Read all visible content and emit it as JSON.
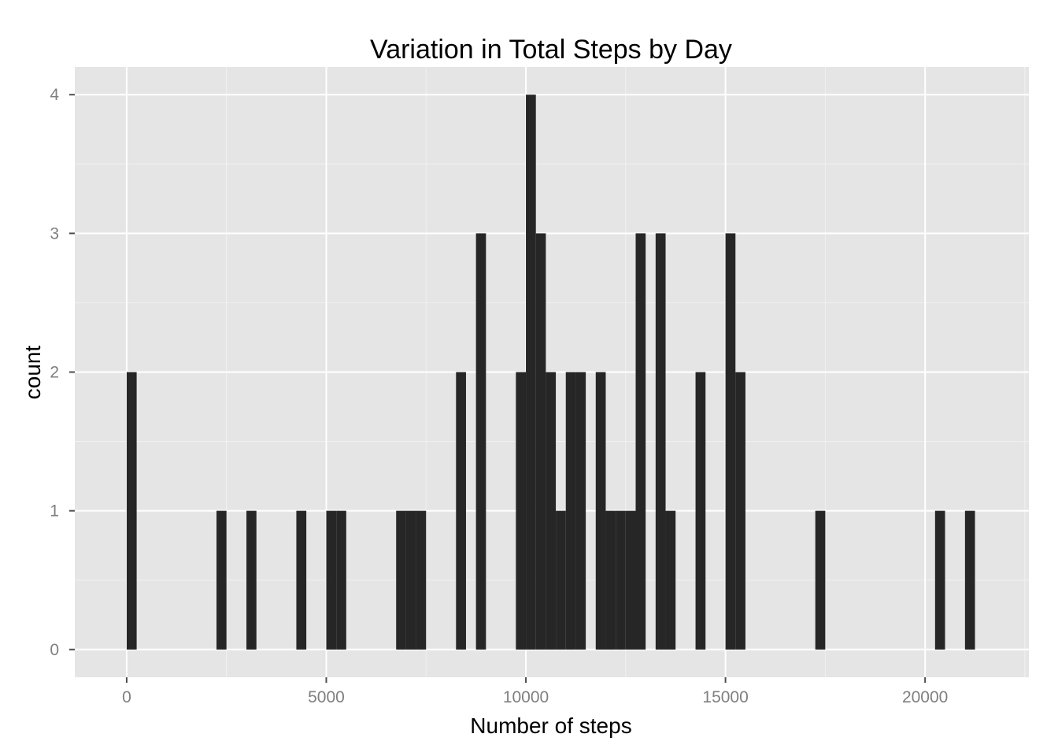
{
  "chart_data": {
    "type": "bar",
    "title": "Variation in Total Steps by Day",
    "xlabel": "Number of steps",
    "ylabel": "count",
    "bin_width": 250,
    "xlim": [
      -1300,
      22600
    ],
    "ylim": [
      -0.2,
      4.2
    ],
    "x_ticks": [
      0,
      5000,
      10000,
      15000,
      20000
    ],
    "x_tick_labels": [
      "0",
      "5000",
      "10000",
      "15000",
      "20000"
    ],
    "y_ticks": [
      0,
      1,
      2,
      3,
      4
    ],
    "y_tick_labels": [
      "0",
      "1",
      "2",
      "3",
      "4"
    ],
    "grid": true,
    "bar_color": "#262626",
    "panel_color": "#e5e5e5",
    "bins": [
      {
        "x0": 0,
        "x1": 250,
        "count": 2
      },
      {
        "x0": 2250,
        "x1": 2500,
        "count": 1
      },
      {
        "x0": 3000,
        "x1": 3250,
        "count": 1
      },
      {
        "x0": 4250,
        "x1": 4500,
        "count": 1
      },
      {
        "x0": 5000,
        "x1": 5250,
        "count": 1
      },
      {
        "x0": 5250,
        "x1": 5500,
        "count": 1
      },
      {
        "x0": 6750,
        "x1": 7000,
        "count": 1
      },
      {
        "x0": 7000,
        "x1": 7250,
        "count": 1
      },
      {
        "x0": 7250,
        "x1": 7500,
        "count": 1
      },
      {
        "x0": 8250,
        "x1": 8500,
        "count": 2
      },
      {
        "x0": 8750,
        "x1": 9000,
        "count": 3
      },
      {
        "x0": 9750,
        "x1": 10000,
        "count": 2
      },
      {
        "x0": 10000,
        "x1": 10250,
        "count": 4
      },
      {
        "x0": 10250,
        "x1": 10500,
        "count": 3
      },
      {
        "x0": 10500,
        "x1": 10750,
        "count": 2
      },
      {
        "x0": 10750,
        "x1": 11000,
        "count": 1
      },
      {
        "x0": 11000,
        "x1": 11250,
        "count": 2
      },
      {
        "x0": 11250,
        "x1": 11500,
        "count": 2
      },
      {
        "x0": 11750,
        "x1": 12000,
        "count": 2
      },
      {
        "x0": 12000,
        "x1": 12250,
        "count": 1
      },
      {
        "x0": 12250,
        "x1": 12500,
        "count": 1
      },
      {
        "x0": 12500,
        "x1": 12750,
        "count": 1
      },
      {
        "x0": 12750,
        "x1": 13000,
        "count": 3
      },
      {
        "x0": 13250,
        "x1": 13500,
        "count": 3
      },
      {
        "x0": 13500,
        "x1": 13750,
        "count": 1
      },
      {
        "x0": 14250,
        "x1": 14500,
        "count": 2
      },
      {
        "x0": 15000,
        "x1": 15250,
        "count": 3
      },
      {
        "x0": 15250,
        "x1": 15500,
        "count": 2
      },
      {
        "x0": 17250,
        "x1": 17500,
        "count": 1
      },
      {
        "x0": 20250,
        "x1": 20500,
        "count": 1
      },
      {
        "x0": 21000,
        "x1": 21250,
        "count": 1
      }
    ]
  }
}
